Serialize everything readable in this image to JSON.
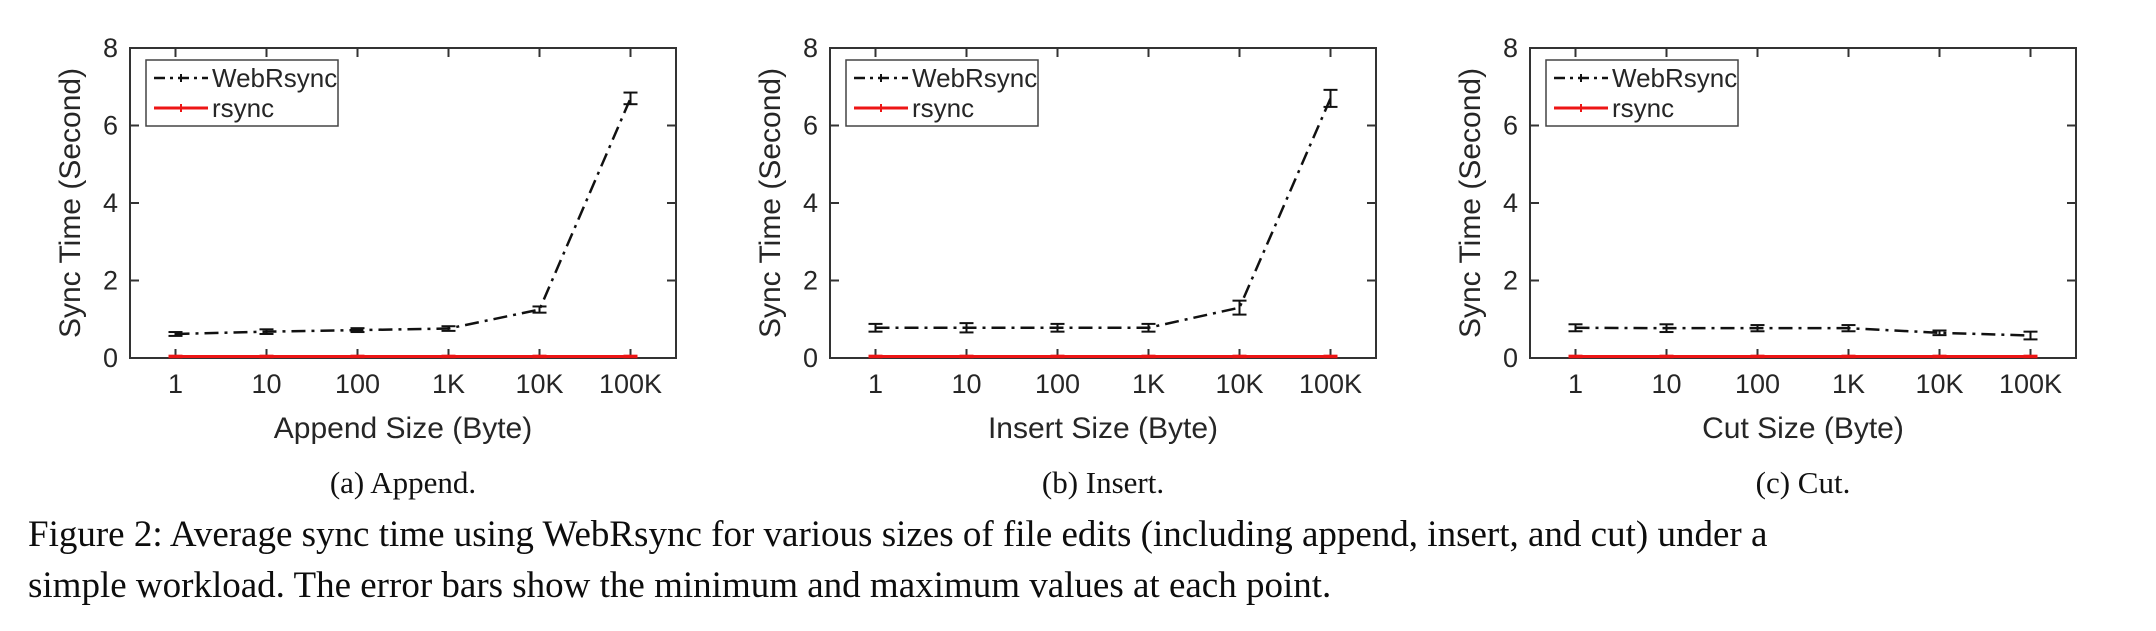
{
  "figure": {
    "caption_lines": [
      "Figure 2: Average sync time using WebRsync for various sizes of file edits (including append, insert, and cut) under a",
      "simple workload. The error bars show the minimum and maximum values at each point."
    ]
  },
  "colors": {
    "axis": "#333333",
    "text": "#262626",
    "webrsync": "#111111",
    "rsync": "#ed1515",
    "legend_border": "#444444",
    "background": "#ffffff"
  },
  "chart_data": [
    {
      "type": "line",
      "subcaption": "(a) Append.",
      "title": "",
      "xlabel": "Append Size (Byte)",
      "ylabel": "Sync Time (Second)",
      "categories": [
        "1",
        "10",
        "100",
        "1K",
        "10K",
        "100K"
      ],
      "ylim": [
        0,
        8
      ],
      "yticks": [
        0,
        2,
        4,
        6,
        8
      ],
      "grid": false,
      "legend_position": "top-left",
      "series": [
        {
          "name": "WebRsync",
          "color": "#111111",
          "style": "dash-dot",
          "values": [
            0.62,
            0.68,
            0.72,
            0.76,
            1.25,
            6.7
          ],
          "err": [
            0.05,
            0.06,
            0.05,
            0.06,
            0.08,
            0.15
          ]
        },
        {
          "name": "rsync",
          "color": "#ed1515",
          "style": "solid",
          "values": [
            0.04,
            0.04,
            0.04,
            0.04,
            0.04,
            0.04
          ],
          "err": [
            0.02,
            0.02,
            0.02,
            0.02,
            0.02,
            0.02
          ]
        }
      ]
    },
    {
      "type": "line",
      "subcaption": "(b) Insert.",
      "title": "",
      "xlabel": "Insert Size (Byte)",
      "ylabel": "Sync Time (Second)",
      "categories": [
        "1",
        "10",
        "100",
        "1K",
        "10K",
        "100K"
      ],
      "ylim": [
        0,
        8
      ],
      "yticks": [
        0,
        2,
        4,
        6,
        8
      ],
      "grid": false,
      "legend_position": "top-left",
      "series": [
        {
          "name": "WebRsync",
          "color": "#111111",
          "style": "dash-dot",
          "values": [
            0.78,
            0.78,
            0.78,
            0.78,
            1.3,
            6.7
          ],
          "err": [
            0.1,
            0.12,
            0.1,
            0.1,
            0.18,
            0.22
          ]
        },
        {
          "name": "rsync",
          "color": "#ed1515",
          "style": "solid",
          "values": [
            0.04,
            0.04,
            0.04,
            0.04,
            0.04,
            0.04
          ],
          "err": [
            0.02,
            0.02,
            0.02,
            0.02,
            0.02,
            0.02
          ]
        }
      ]
    },
    {
      "type": "line",
      "subcaption": "(c) Cut.",
      "title": "",
      "xlabel": "Cut Size (Byte)",
      "ylabel": "Sync Time (Second)",
      "categories": [
        "1",
        "10",
        "100",
        "1K",
        "10K",
        "100K"
      ],
      "ylim": [
        0,
        8
      ],
      "yticks": [
        0,
        2,
        4,
        6,
        8
      ],
      "grid": false,
      "legend_position": "top-left",
      "series": [
        {
          "name": "WebRsync",
          "color": "#111111",
          "style": "dash-dot",
          "values": [
            0.78,
            0.77,
            0.77,
            0.77,
            0.65,
            0.58
          ],
          "err": [
            0.09,
            0.1,
            0.08,
            0.08,
            0.06,
            0.1
          ]
        },
        {
          "name": "rsync",
          "color": "#ed1515",
          "style": "solid",
          "values": [
            0.04,
            0.04,
            0.04,
            0.04,
            0.04,
            0.04
          ],
          "err": [
            0.02,
            0.02,
            0.02,
            0.02,
            0.02,
            0.02
          ]
        }
      ]
    }
  ]
}
